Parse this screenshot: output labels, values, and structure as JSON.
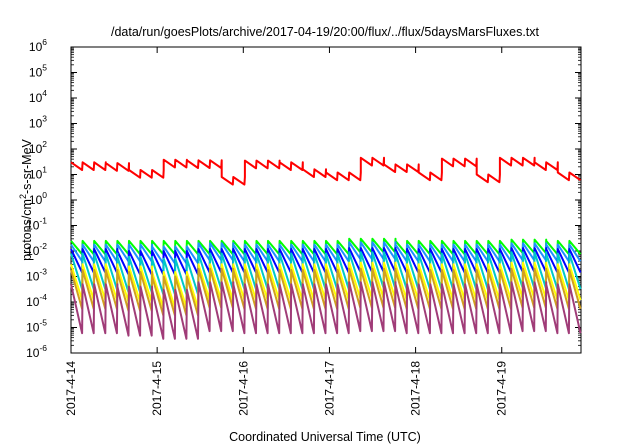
{
  "chart_data": {
    "type": "line",
    "title": "/data/run/goesPlots/archive/2017-04-19/20:00/flux/../flux/5daysMarsFluxes.txt",
    "xlabel": "Coordinated Universal Time (UTC)",
    "ylabel": "protons/cm2-s-sr-MeV",
    "ylabel_parts": {
      "base": "protons/cm",
      "sup": "2",
      "rest": "-s-sr-MeV"
    },
    "yscale": "log",
    "ylim": [
      1e-06,
      1000000.0
    ],
    "xlim": [
      0,
      5.92
    ],
    "xtick_labels": [
      "2017-4-14",
      "2017-4-15",
      "2017-4-16",
      "2017-4-17",
      "2017-4-18",
      "2017-4-19"
    ],
    "ytick_labels": [
      {
        "exp": -6,
        "base": "10",
        "sup": "-6"
      },
      {
        "exp": -5,
        "base": "10",
        "sup": "-5"
      },
      {
        "exp": -4,
        "base": "10",
        "sup": "-4"
      },
      {
        "exp": -3,
        "base": "10",
        "sup": "-3"
      },
      {
        "exp": -2,
        "base": "10",
        "sup": "-2"
      },
      {
        "exp": -1,
        "base": "10",
        "sup": "-1"
      },
      {
        "exp": 0,
        "base": "10",
        "sup": "0"
      },
      {
        "exp": 1,
        "base": "10",
        "sup": "1"
      },
      {
        "exp": 2,
        "base": "10",
        "sup": "2"
      },
      {
        "exp": 3,
        "base": "10",
        "sup": "3"
      },
      {
        "exp": 4,
        "base": "10",
        "sup": "4"
      },
      {
        "exp": 5,
        "base": "10",
        "sup": "5"
      },
      {
        "exp": 6,
        "base": "10",
        "sup": "6"
      }
    ],
    "grid": false,
    "legend": "none",
    "series_style": "sawtooth decay pattern, about 44 cycles over 6 days",
    "series": [
      {
        "color": "#ff0000",
        "width": 2,
        "envelope_high": [
          30,
          28,
          15,
          38,
          36,
          8,
          35,
          30,
          16,
          12,
          45,
          25,
          12,
          42,
          10,
          45,
          30,
          12
        ],
        "cycle_drop": 0.5
      },
      {
        "color": "#00ff00",
        "width": 2,
        "envelope_high": [
          0.025,
          0.025,
          0.025,
          0.025,
          0.025,
          0.025,
          0.025,
          0.03,
          0.025,
          0.025,
          0.025,
          0.028,
          0.025
        ],
        "cycle_drop": 0.3
      },
      {
        "color": "#1e90ff",
        "width": 2,
        "envelope_high": [
          0.018,
          0.018,
          0.015,
          0.02,
          0.018,
          0.018,
          0.018,
          0.022,
          0.018,
          0.018,
          0.018,
          0.02,
          0.018
        ],
        "cycle_drop": 0.22
      },
      {
        "color": "#0000ff",
        "width": 2,
        "envelope_high": [
          0.012,
          0.01,
          0.01,
          0.012,
          0.012,
          0.012,
          0.012,
          0.013,
          0.012,
          0.012,
          0.012,
          0.013,
          0.012
        ],
        "cycle_drop": 0.12
      },
      {
        "color": "#00c8c8",
        "width": 2,
        "envelope_high": [
          0.008,
          0.006,
          0.005,
          0.008,
          0.008,
          0.008,
          0.008,
          0.009,
          0.008,
          0.008,
          0.008,
          0.009,
          0.008
        ],
        "cycle_drop": 0.04
      },
      {
        "color": "#ffff00",
        "width": 2,
        "envelope_high": [
          0.003,
          0.0025,
          0.0015,
          0.003,
          0.003,
          0.003,
          0.003,
          0.0035,
          0.003,
          0.003,
          0.003,
          0.0035,
          0.003
        ],
        "cycle_drop": 0.04
      },
      {
        "color": "#d2a01e",
        "width": 2,
        "envelope_high": [
          0.0018,
          0.0015,
          0.001,
          0.002,
          0.0018,
          0.0018,
          0.0018,
          0.002,
          0.0018,
          0.0018,
          0.0018,
          0.002,
          0.0018
        ],
        "cycle_drop": 0.03
      },
      {
        "color": "#a03c78",
        "width": 2,
        "envelope_high": [
          0.0005,
          0.0004,
          0.0003,
          0.0006,
          0.0005,
          0.0005,
          0.0005,
          0.0006,
          0.0005,
          0.0005,
          0.0005,
          0.0006,
          0.0005
        ],
        "cycle_drop": 0.012
      }
    ]
  }
}
